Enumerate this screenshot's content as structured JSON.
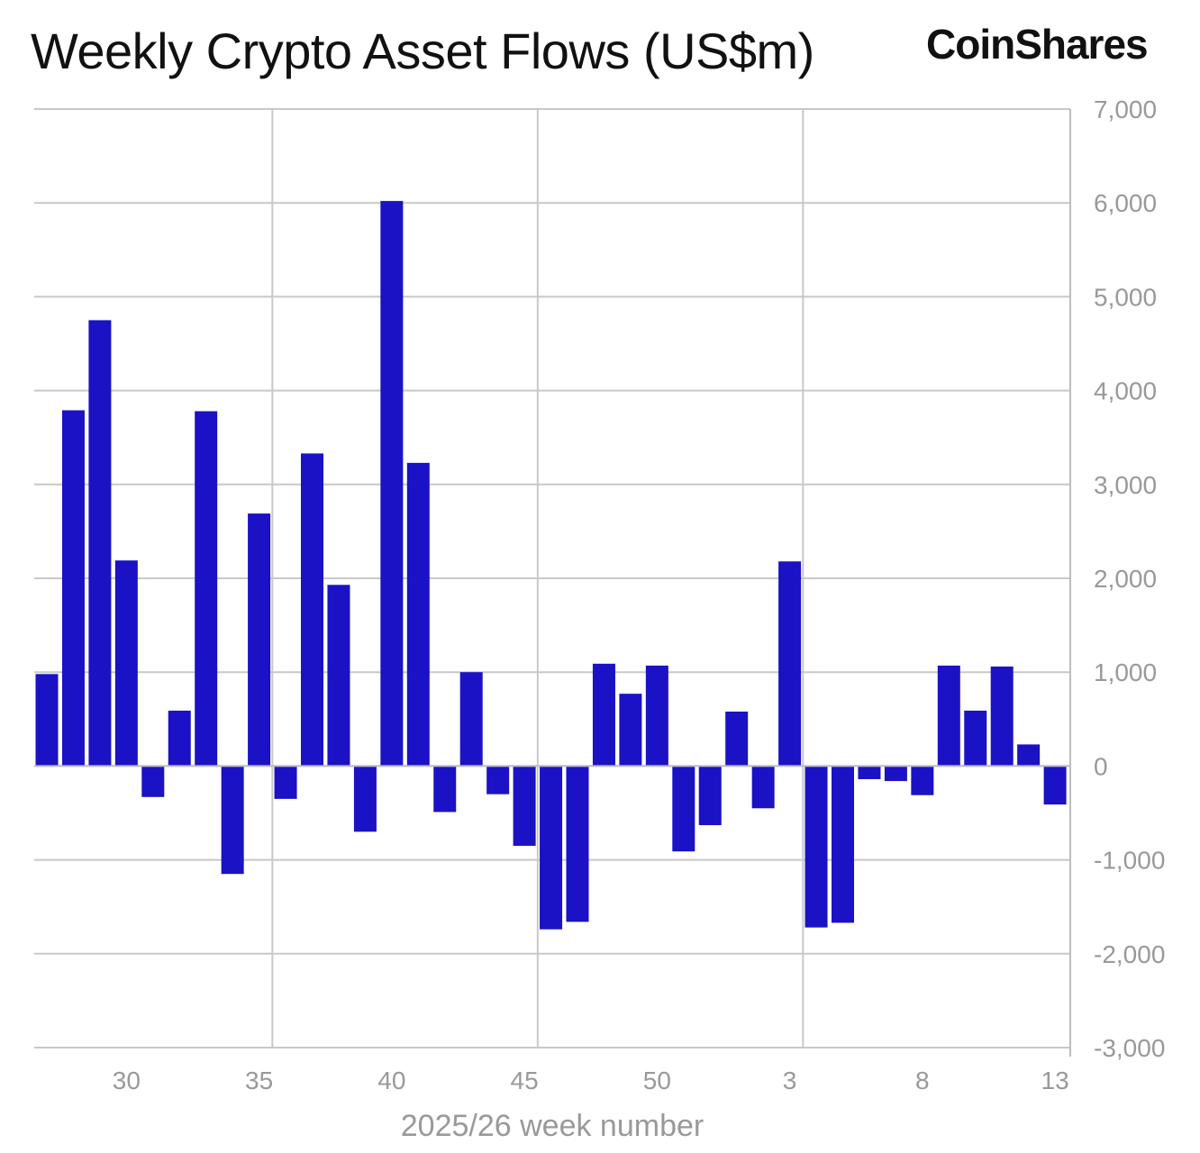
{
  "chart_data": {
    "type": "bar",
    "title": "Weekly Crypto Asset Flows (US$m)",
    "logo": "CoinShares",
    "xlabel": "2025/26 week number",
    "ylabel": "",
    "ylim": [
      -3000,
      7000
    ],
    "yticks": [
      7000,
      6000,
      5000,
      4000,
      3000,
      2000,
      1000,
      0,
      -1000,
      -2000,
      -3000
    ],
    "ytick_labels": [
      "7,000",
      "6,000",
      "5,000",
      "4,000",
      "3,000",
      "2,000",
      "1,000",
      "0",
      "-1,000",
      "-2,000",
      "-3,000"
    ],
    "xtick_labels": [
      "30",
      "35",
      "40",
      "45",
      "50",
      "3",
      "8",
      "13"
    ],
    "grid": true,
    "bar_color": "#1a12c4",
    "categories": [
      "27",
      "28",
      "29",
      "30",
      "31",
      "32",
      "33",
      "34",
      "35",
      "36",
      "37",
      "38",
      "39",
      "40",
      "41",
      "42",
      "43",
      "44",
      "45",
      "46",
      "47",
      "48",
      "49",
      "50",
      "51",
      "52",
      "1",
      "2",
      "3",
      "4",
      "5",
      "6",
      "7",
      "8",
      "9",
      "10",
      "11",
      "12",
      "13"
    ],
    "values": [
      980,
      3790,
      4750,
      2190,
      -330,
      590,
      3780,
      -1150,
      2690,
      -350,
      3330,
      1930,
      -700,
      6020,
      3230,
      -490,
      1000,
      -300,
      -850,
      -1740,
      -1660,
      1090,
      770,
      1070,
      -910,
      -630,
      580,
      -450,
      2180,
      -1720,
      -1670,
      -140,
      -160,
      -310,
      1070,
      590,
      1060,
      230,
      -410
    ]
  }
}
